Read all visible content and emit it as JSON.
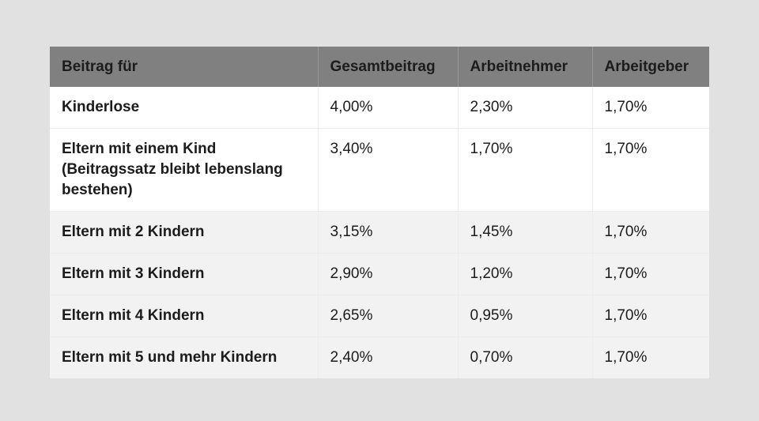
{
  "table": {
    "headers": [
      "Beitrag für",
      "Gesamtbeitrag",
      "Arbeitnehmer",
      "Arbeitgeber"
    ],
    "rows": [
      {
        "label": "Kinderlose",
        "gesamt": "4,00%",
        "arbeitnehmer": "2,30%",
        "arbeitgeber": "1,70%"
      },
      {
        "label_lines": [
          "Eltern mit einem Kind",
          "(Beitragssatz bleibt lebenslang",
          "bestehen)"
        ],
        "gesamt": "3,40%",
        "arbeitnehmer": "1,70%",
        "arbeitgeber": "1,70%"
      },
      {
        "label": "Eltern mit 2 Kindern",
        "gesamt": "3,15%",
        "arbeitnehmer": "1,45%",
        "arbeitgeber": "1,70%"
      },
      {
        "label": "Eltern mit 3 Kindern",
        "gesamt": "2,90%",
        "arbeitnehmer": "1,20%",
        "arbeitgeber": "1,70%"
      },
      {
        "label": "Eltern mit 4 Kindern",
        "gesamt": "2,65%",
        "arbeitnehmer": "0,95%",
        "arbeitgeber": "1,70%"
      },
      {
        "label": "Eltern mit 5 und mehr Kindern",
        "gesamt": "2,40%",
        "arbeitnehmer": "0,70%",
        "arbeitgeber": "1,70%"
      }
    ]
  },
  "colors": {
    "page_background": "#e1e1e1",
    "header_background": "#808080",
    "row_white": "#ffffff",
    "row_grey": "#f2f2f2",
    "text": "#1c1c1c"
  }
}
